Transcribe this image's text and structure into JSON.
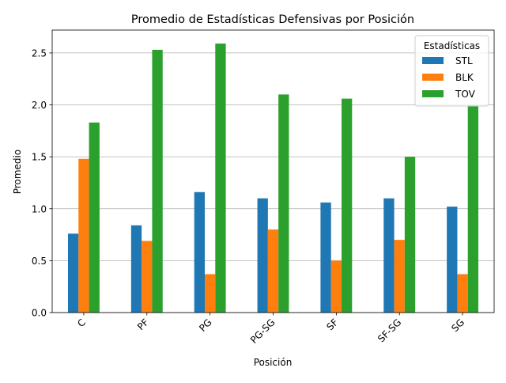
{
  "chart_data": {
    "type": "bar",
    "title": "Promedio de Estadísticas Defensivas por Posición",
    "xlabel": "Posición",
    "ylabel": "Promedio",
    "categories": [
      "C",
      "PF",
      "PG",
      "PG-SG",
      "SF",
      "SF-SG",
      "SG"
    ],
    "series": [
      {
        "name": "STL",
        "color": "#1f77b4",
        "values": [
          0.76,
          0.84,
          1.16,
          1.1,
          1.06,
          1.1,
          1.02
        ]
      },
      {
        "name": "BLK",
        "color": "#ff7f0e",
        "values": [
          1.48,
          0.69,
          0.37,
          0.8,
          0.5,
          0.7,
          0.37
        ]
      },
      {
        "name": "TOV",
        "color": "#2ca02c",
        "values": [
          1.83,
          2.53,
          2.59,
          2.1,
          2.06,
          1.5,
          2.0
        ]
      }
    ],
    "ylim": [
      0,
      2.72
    ],
    "yticks": [
      "0.0",
      "0.5",
      "1.0",
      "1.5",
      "2.0",
      "2.5"
    ],
    "grid": "y",
    "legend": {
      "title": "Estadísticas",
      "placement": "top-right"
    }
  }
}
